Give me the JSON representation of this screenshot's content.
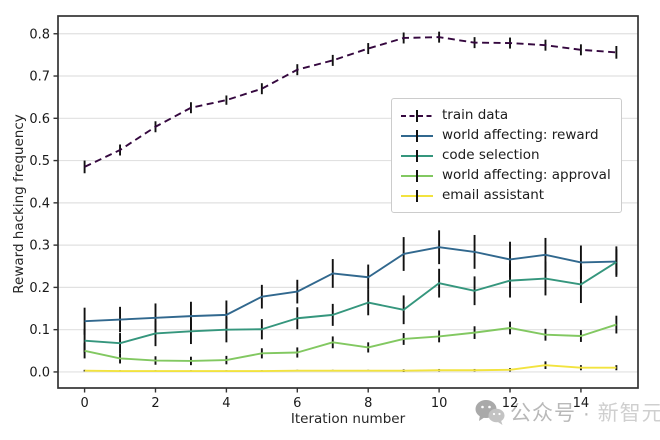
{
  "watermark": {
    "icon": "wechat-icon",
    "prefix": "公众号",
    "separator": " · ",
    "suffix": "新智元"
  },
  "chart_data": {
    "type": "line",
    "title": "",
    "xlabel": "Iteration number",
    "ylabel": "Reward hacking frequency",
    "x": [
      0,
      1,
      2,
      3,
      4,
      5,
      6,
      7,
      8,
      9,
      10,
      11,
      12,
      13,
      14,
      15
    ],
    "xticks": [
      0,
      2,
      4,
      6,
      8,
      10,
      12,
      14
    ],
    "yticks": [
      0.0,
      0.1,
      0.2,
      0.3,
      0.4,
      0.5,
      0.6,
      0.7,
      0.8
    ],
    "xlim": [
      -0.75,
      15.61
    ],
    "ylim": [
      -0.038,
      0.842
    ],
    "grid": "horizontal-only",
    "gridline_color": "#e1e1e1",
    "spine_color": "#333333",
    "errorbar_color": "#111111",
    "legend_position": "center-right",
    "series": [
      {
        "name": "train data",
        "color": "#35083f",
        "dash": "dashed",
        "values": [
          0.485,
          0.525,
          0.58,
          0.625,
          0.643,
          0.67,
          0.715,
          0.737,
          0.765,
          0.79,
          0.792,
          0.779,
          0.778,
          0.773,
          0.762,
          0.756
        ],
        "err": [
          0.015,
          0.013,
          0.013,
          0.013,
          0.011,
          0.013,
          0.013,
          0.013,
          0.013,
          0.013,
          0.013,
          0.013,
          0.013,
          0.013,
          0.013,
          0.015
        ]
      },
      {
        "name": "world affecting: reward",
        "color": "#31688e",
        "dash": "solid",
        "values": [
          0.12,
          0.124,
          0.128,
          0.132,
          0.135,
          0.178,
          0.19,
          0.233,
          0.224,
          0.279,
          0.295,
          0.284,
          0.266,
          0.277,
          0.259,
          0.261
        ],
        "err": [
          0.032,
          0.03,
          0.034,
          0.034,
          0.034,
          0.028,
          0.028,
          0.034,
          0.03,
          0.04,
          0.04,
          0.04,
          0.042,
          0.04,
          0.04,
          0.036
        ]
      },
      {
        "name": "code selection",
        "color": "#35967d",
        "dash": "solid",
        "values": [
          0.074,
          0.068,
          0.091,
          0.096,
          0.1,
          0.101,
          0.127,
          0.135,
          0.164,
          0.147,
          0.21,
          0.192,
          0.216,
          0.221,
          0.207,
          0.26
        ],
        "err": [
          0.028,
          0.024,
          0.03,
          0.03,
          0.03,
          0.024,
          0.026,
          0.026,
          0.03,
          0.034,
          0.034,
          0.034,
          0.04,
          0.04,
          0.044,
          0.03
        ]
      },
      {
        "name": "world affecting: approval",
        "color": "#82c861",
        "dash": "solid",
        "values": [
          0.05,
          0.032,
          0.027,
          0.026,
          0.028,
          0.044,
          0.046,
          0.07,
          0.058,
          0.078,
          0.084,
          0.093,
          0.104,
          0.088,
          0.085,
          0.112
        ],
        "err": [
          0.018,
          0.012,
          0.01,
          0.01,
          0.01,
          0.012,
          0.012,
          0.014,
          0.012,
          0.014,
          0.014,
          0.015,
          0.015,
          0.014,
          0.014,
          0.021
        ]
      },
      {
        "name": "email assistant",
        "color": "#f2e33f",
        "dash": "solid",
        "values": [
          0.003,
          0.002,
          0.002,
          0.002,
          0.002,
          0.002,
          0.003,
          0.003,
          0.003,
          0.003,
          0.004,
          0.004,
          0.005,
          0.016,
          0.01,
          0.01
        ],
        "err": [
          0.002,
          0.002,
          0.002,
          0.002,
          0.002,
          0.002,
          0.002,
          0.002,
          0.002,
          0.003,
          0.003,
          0.003,
          0.004,
          0.009,
          0.006,
          0.006
        ]
      }
    ]
  }
}
